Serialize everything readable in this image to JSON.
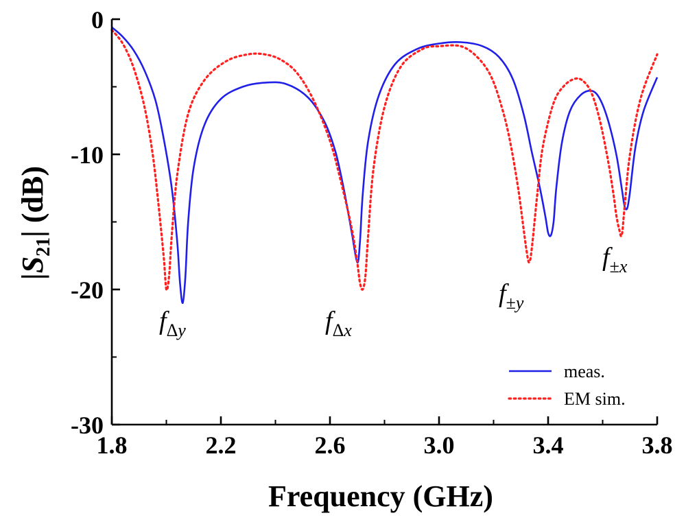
{
  "chart_data": {
    "type": "line",
    "title": "",
    "xlabel": "Frequency (GHz)",
    "ylabel_parts": {
      "pre": "|",
      "s": "S",
      "sub": "21",
      "post": "| (dB)"
    },
    "xlim": [
      1.8,
      3.8
    ],
    "ylim": [
      -30,
      0
    ],
    "x_ticks": [
      "1.8",
      "2.2",
      "2.6",
      "3.0",
      "3.4",
      "3.8"
    ],
    "x_tick_values": [
      1.8,
      2.2,
      2.6,
      3.0,
      3.4,
      3.8
    ],
    "y_ticks": [
      "0",
      "-10",
      "-20",
      "-30"
    ],
    "y_tick_values": [
      0,
      -10,
      -20,
      -30
    ],
    "legend_position": "bottom-right",
    "series": [
      {
        "name": "meas.",
        "color": "#1f1fe8",
        "style": "solid",
        "x": [
          1.8,
          1.84,
          1.88,
          1.92,
          1.96,
          1.99,
          2.02,
          2.04,
          2.05,
          2.06,
          2.07,
          2.08,
          2.1,
          2.14,
          2.2,
          2.28,
          2.36,
          2.44,
          2.52,
          2.58,
          2.62,
          2.65,
          2.68,
          2.7,
          2.71,
          2.72,
          2.74,
          2.78,
          2.84,
          2.92,
          3.0,
          3.08,
          3.16,
          3.22,
          3.27,
          3.31,
          3.34,
          3.37,
          3.39,
          3.4,
          3.41,
          3.42,
          3.43,
          3.45,
          3.48,
          3.52,
          3.56,
          3.59,
          3.62,
          3.65,
          3.67,
          3.68,
          3.69,
          3.7,
          3.72,
          3.75,
          3.8
        ],
        "y": [
          -0.6,
          -1.3,
          -2.3,
          -3.8,
          -6.0,
          -8.8,
          -12.5,
          -16.5,
          -19.5,
          -21.0,
          -19.0,
          -15.0,
          -11.0,
          -7.8,
          -5.9,
          -5.0,
          -4.7,
          -4.8,
          -5.8,
          -7.6,
          -9.8,
          -12.5,
          -15.8,
          -18.0,
          -16.5,
          -13.0,
          -9.0,
          -5.6,
          -3.3,
          -2.2,
          -1.8,
          -1.7,
          -2.0,
          -2.8,
          -4.4,
          -7.0,
          -9.8,
          -12.5,
          -14.6,
          -15.8,
          -16.0,
          -15.0,
          -12.5,
          -9.2,
          -6.8,
          -5.6,
          -5.3,
          -5.9,
          -7.5,
          -10.0,
          -12.5,
          -13.8,
          -14.0,
          -12.8,
          -9.5,
          -6.8,
          -4.3
        ]
      },
      {
        "name": "EM sim.",
        "color": "#ff2020",
        "style": "dotted",
        "x": [
          1.8,
          1.84,
          1.88,
          1.92,
          1.95,
          1.97,
          1.99,
          2.0,
          2.01,
          2.02,
          2.04,
          2.08,
          2.14,
          2.22,
          2.3,
          2.36,
          2.42,
          2.48,
          2.54,
          2.6,
          2.64,
          2.68,
          2.7,
          2.71,
          2.72,
          2.73,
          2.74,
          2.76,
          2.8,
          2.86,
          2.94,
          3.0,
          3.08,
          3.14,
          3.19,
          3.23,
          3.26,
          3.29,
          3.31,
          3.32,
          3.33,
          3.34,
          3.36,
          3.38,
          3.42,
          3.46,
          3.5,
          3.53,
          3.56,
          3.59,
          3.62,
          3.64,
          3.65,
          3.66,
          3.67,
          3.68,
          3.7,
          3.74,
          3.8
        ],
        "y": [
          -0.8,
          -1.8,
          -3.6,
          -6.5,
          -10.0,
          -13.5,
          -17.5,
          -20.0,
          -19.0,
          -16.0,
          -11.5,
          -7.0,
          -4.5,
          -3.1,
          -2.6,
          -2.6,
          -3.0,
          -4.0,
          -6.0,
          -9.0,
          -12.0,
          -15.5,
          -18.0,
          -19.5,
          -20.0,
          -19.0,
          -16.0,
          -11.0,
          -6.5,
          -3.5,
          -2.2,
          -2.0,
          -2.0,
          -2.8,
          -4.2,
          -6.5,
          -9.0,
          -12.5,
          -15.5,
          -17.0,
          -18.0,
          -17.0,
          -13.0,
          -9.5,
          -6.2,
          -4.9,
          -4.4,
          -4.6,
          -5.5,
          -7.5,
          -10.5,
          -13.0,
          -14.5,
          -15.5,
          -16.0,
          -14.0,
          -10.0,
          -5.8,
          -2.6
        ]
      }
    ],
    "annotations": [
      {
        "base": "f",
        "sub_upright": "Δ",
        "sub_italic": "y"
      },
      {
        "base": "f",
        "sub_upright": "Δ",
        "sub_italic": "x"
      },
      {
        "base": "f",
        "sub_upright": "±",
        "sub_italic": "y"
      },
      {
        "base": "f",
        "sub_upright": "±",
        "sub_italic": "x"
      }
    ]
  }
}
